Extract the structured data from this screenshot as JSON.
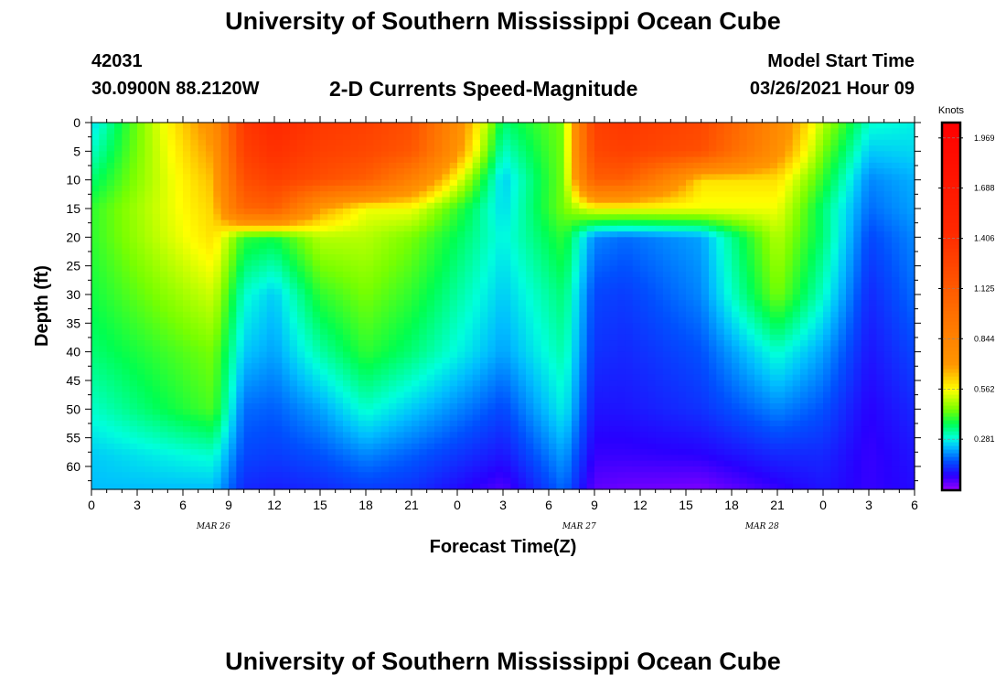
{
  "header": {
    "title": "University of Southern Mississippi Ocean Cube",
    "station_id": "42031",
    "coordinates": "30.0900N 88.2120W",
    "subtitle": "2-D Currents Speed-Magnitude",
    "model_start_label": "Model Start Time",
    "model_start_value": "03/26/2021 Hour 09"
  },
  "footer": {
    "title": "University of Southern Mississippi Ocean Cube"
  },
  "colors": {
    "background": "#ffffff",
    "frame": "#000000",
    "colorbar_frame": "#000000",
    "colorbar_border": "#ff0000"
  },
  "chart_data": {
    "type": "heatmap",
    "title": "2-D Currents Speed-Magnitude",
    "xlabel": "Forecast Time(Z)",
    "ylabel": "Depth (ft)",
    "x_tick_labels": [
      "0",
      "3",
      "6",
      "9",
      "12",
      "15",
      "18",
      "21",
      "0",
      "3",
      "6",
      "9",
      "12",
      "15",
      "18",
      "21",
      "0",
      "3",
      "6"
    ],
    "date_labels": [
      {
        "text": "MAR 26",
        "hour_index": 16
      },
      {
        "text": "MAR 27",
        "hour_index": 64
      },
      {
        "text": "MAR 28",
        "hour_index": 88
      }
    ],
    "xlim_hours": [
      0,
      54
    ],
    "y_tick_labels": [
      "0",
      "5",
      "10",
      "15",
      "20",
      "25",
      "30",
      "35",
      "40",
      "45",
      "50",
      "55",
      "60"
    ],
    "ylim_ft": [
      0,
      64
    ],
    "colorbar": {
      "units": "Knots",
      "ticks": [
        "1.969",
        "1.688",
        "1.406",
        "1.125",
        "0.844",
        "0.562",
        "0.281"
      ],
      "tick_values": [
        1.969,
        1.688,
        1.406,
        1.125,
        0.844,
        0.562,
        0.281
      ],
      "range": [
        0,
        2.05
      ]
    },
    "key_times_hours": [
      0,
      8,
      10,
      12,
      15,
      18,
      21,
      27,
      31,
      33,
      35,
      40,
      45,
      48,
      51,
      54
    ],
    "key_depths_ft": [
      0,
      5,
      10,
      15,
      20,
      30,
      40,
      50,
      58,
      64
    ],
    "speed_knots": [
      [
        0.26,
        0.75,
        1.35,
        1.45,
        1.35,
        1.3,
        1.2,
        0.35,
        0.45,
        1.3,
        1.35,
        1.25,
        0.8,
        0.5,
        0.3,
        0.28
      ],
      [
        0.3,
        0.7,
        1.3,
        1.4,
        1.3,
        1.25,
        1.15,
        0.3,
        0.45,
        1.25,
        1.3,
        1.2,
        0.75,
        0.45,
        0.25,
        0.26
      ],
      [
        0.35,
        0.65,
        1.2,
        1.3,
        1.2,
        1.1,
        0.85,
        0.25,
        0.45,
        1.1,
        1.1,
        0.6,
        0.6,
        0.4,
        0.2,
        0.23
      ],
      [
        0.4,
        0.62,
        1.05,
        1.1,
        0.7,
        0.55,
        0.55,
        0.26,
        0.45,
        0.55,
        0.55,
        0.55,
        0.55,
        0.35,
        0.18,
        0.22
      ],
      [
        0.4,
        0.6,
        0.4,
        0.38,
        0.5,
        0.5,
        0.45,
        0.28,
        0.4,
        0.2,
        0.18,
        0.22,
        0.5,
        0.35,
        0.15,
        0.2
      ],
      [
        0.38,
        0.52,
        0.3,
        0.25,
        0.4,
        0.45,
        0.4,
        0.25,
        0.35,
        0.15,
        0.14,
        0.2,
        0.45,
        0.3,
        0.12,
        0.18
      ],
      [
        0.35,
        0.45,
        0.25,
        0.22,
        0.32,
        0.4,
        0.35,
        0.22,
        0.32,
        0.13,
        0.12,
        0.16,
        0.3,
        0.22,
        0.1,
        0.15
      ],
      [
        0.3,
        0.42,
        0.18,
        0.17,
        0.22,
        0.3,
        0.25,
        0.15,
        0.28,
        0.1,
        0.1,
        0.13,
        0.2,
        0.16,
        0.08,
        0.12
      ],
      [
        0.25,
        0.3,
        0.15,
        0.14,
        0.16,
        0.2,
        0.17,
        0.1,
        0.22,
        0.07,
        0.07,
        0.08,
        0.12,
        0.12,
        0.07,
        0.1
      ],
      [
        0.24,
        0.24,
        0.12,
        0.11,
        0.12,
        0.14,
        0.13,
        0.05,
        0.18,
        0.04,
        0.03,
        0.02,
        0.07,
        0.1,
        0.07,
        0.09
      ]
    ]
  }
}
